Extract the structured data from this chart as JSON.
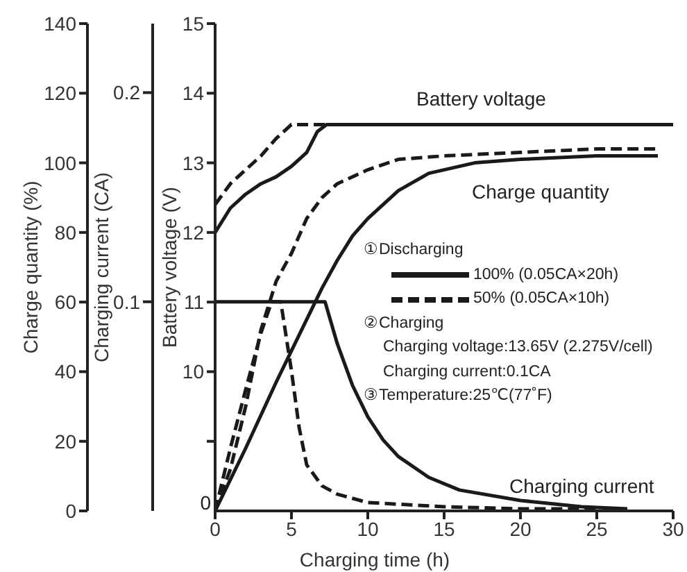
{
  "chart_data": {
    "type": "line",
    "xlabel": "Charging time (h)",
    "ylabel": "Charge quantity (%)",
    "y2label": "Charging current (CA)",
    "y3label": "Battery voltage (V)",
    "xlim": [
      0,
      30
    ],
    "xticks": [
      0,
      5,
      10,
      15,
      20,
      25,
      30
    ],
    "ylim": [
      0,
      140
    ],
    "yticks": [
      0,
      20,
      40,
      60,
      80,
      100,
      120,
      140
    ],
    "y2lim": [
      0,
      0.233
    ],
    "y2ticks": [
      0.1,
      0.2
    ],
    "y3lim": [
      8,
      15
    ],
    "y3ticks": [
      {
        "value": 9,
        "label": null
      },
      10,
      11,
      12,
      13,
      14,
      15
    ],
    "legend": "right",
    "legend_title": "①Discharging",
    "series": [
      {
        "name": "100% (0.05CA×20h)",
        "color": "#1a1a1a",
        "line_style": "solid",
        "x": [
          0,
          2,
          4,
          6,
          7,
          8,
          9,
          10,
          12,
          14,
          17,
          20,
          25,
          29
        ],
        "values": [
          0,
          18,
          37,
          55,
          64,
          72,
          79,
          84,
          92,
          97,
          100,
          101,
          102,
          102
        ]
      },
      {
        "name": "50% (0.05CA×10h)",
        "color": "#1a1a1a",
        "line_style": "dashed",
        "x": [
          0,
          1,
          2,
          3,
          4,
          5,
          6,
          7,
          8,
          10,
          12,
          15,
          20,
          25,
          29
        ],
        "values": [
          0,
          12,
          30,
          52,
          66,
          74,
          84,
          90,
          94,
          98,
          101,
          102,
          103,
          104,
          104
        ]
      },
      {
        "color": "#1a1a1a",
        "line_style": "solid",
        "axis": "y3",
        "x": [
          0,
          1,
          2,
          3,
          4,
          5,
          6,
          6.7,
          7.3,
          30
        ],
        "values": [
          12,
          12.35,
          12.55,
          12.7,
          12.8,
          12.95,
          13.15,
          13.45,
          13.55,
          13.55
        ]
      },
      {
        "color": "#1a1a1a",
        "line_style": "dashed",
        "axis": "y3",
        "x": [
          0,
          1,
          2,
          3,
          4,
          5,
          7.5
        ],
        "values": [
          12.4,
          12.7,
          12.9,
          13.1,
          13.35,
          13.55,
          13.55
        ]
      },
      {
        "color": "#1a1a1a",
        "line_style": "solid",
        "axis": "y2",
        "x": [
          0,
          7.2,
          8,
          9,
          10,
          11,
          12,
          14,
          16,
          20,
          24,
          27
        ],
        "values": [
          0.1,
          0.1,
          0.08,
          0.06,
          0.045,
          0.034,
          0.026,
          0.016,
          0.01,
          0.005,
          0.002,
          0.001
        ]
      },
      {
        "color": "#1a1a1a",
        "line_style": "dashed",
        "axis": "y2",
        "x": [
          0,
          1,
          2,
          3,
          3.7,
          4.3,
          5,
          5.5,
          6,
          7,
          8,
          10,
          15,
          20,
          25
        ],
        "values": [
          0,
          0.03,
          0.058,
          0.085,
          0.1,
          0.1,
          0.067,
          0.04,
          0.022,
          0.012,
          0.008,
          0.004,
          0.002,
          0.001,
          0.001
        ]
      }
    ],
    "annotations": [
      "0",
      "Battery voltage",
      "Charge quantity",
      "Charging current",
      "②Charging",
      "Charging voltage:13.65V (2.275V/cell)",
      "Charging current:0.1CA",
      "③Temperature:25℃(77˚F)"
    ]
  }
}
